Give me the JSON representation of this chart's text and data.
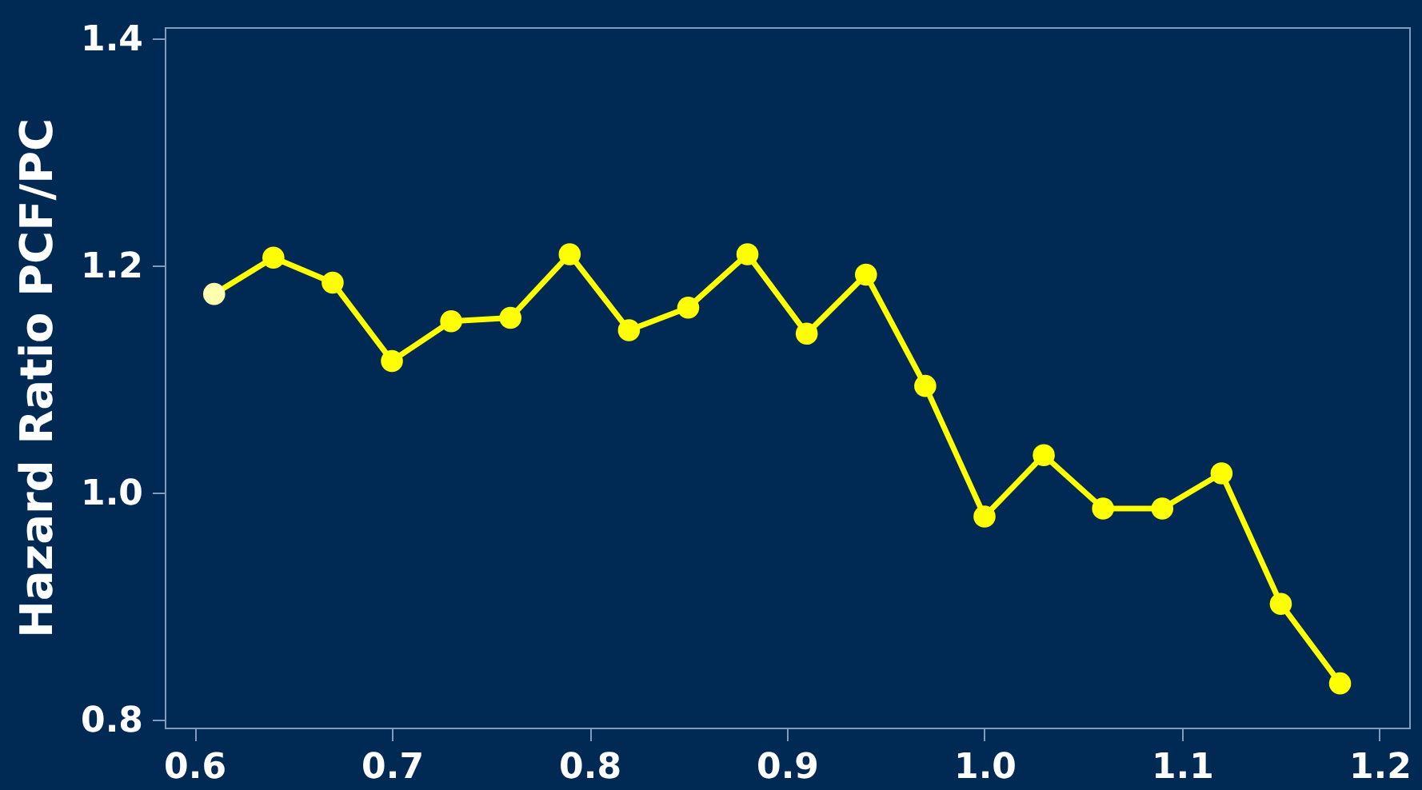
{
  "chart_data": {
    "type": "line",
    "ylabel": "Hazard Ratio PCF/PC",
    "x": [
      0.61,
      0.64,
      0.67,
      0.7,
      0.73,
      0.76,
      0.79,
      0.82,
      0.85,
      0.88,
      0.91,
      0.94,
      0.97,
      1.0,
      1.03,
      1.06,
      1.09,
      1.12,
      1.15,
      1.18
    ],
    "series": [
      {
        "color": "#ffff00",
        "values": [
          1.175,
          1.207,
          1.185,
          1.116,
          1.151,
          1.154,
          1.21,
          1.143,
          1.163,
          1.21,
          1.14,
          1.192,
          1.094,
          0.979,
          1.033,
          0.986,
          0.986,
          1.017,
          0.902,
          0.832
        ]
      }
    ],
    "colors": [
      "#ffffb0",
      "#ffff00",
      "#ffff00",
      "#ffff00",
      "#ffff00",
      "#ffff00",
      "#ffff00",
      "#ffff00",
      "#ffff00",
      "#ffff00",
      "#ffff00",
      "#ffff00",
      "#ffff00",
      "#ffff00",
      "#ffff00",
      "#ffff00",
      "#ffff00",
      "#ffff00",
      "#ffff00",
      "#ffff00"
    ],
    "xlim": [
      0.585,
      1.215
    ],
    "xticks": [
      0.6,
      0.7,
      0.8,
      0.9,
      {
        "value": 1,
        "label": "1.0"
      },
      1.1,
      1.2
    ],
    "ylim": [
      0.793,
      1.41
    ],
    "yticks": [
      0.8,
      {
        "value": 1,
        "label": "1.0"
      },
      1.2,
      1.4
    ],
    "grid": false,
    "marker": "circle",
    "line_style": "solid"
  }
}
